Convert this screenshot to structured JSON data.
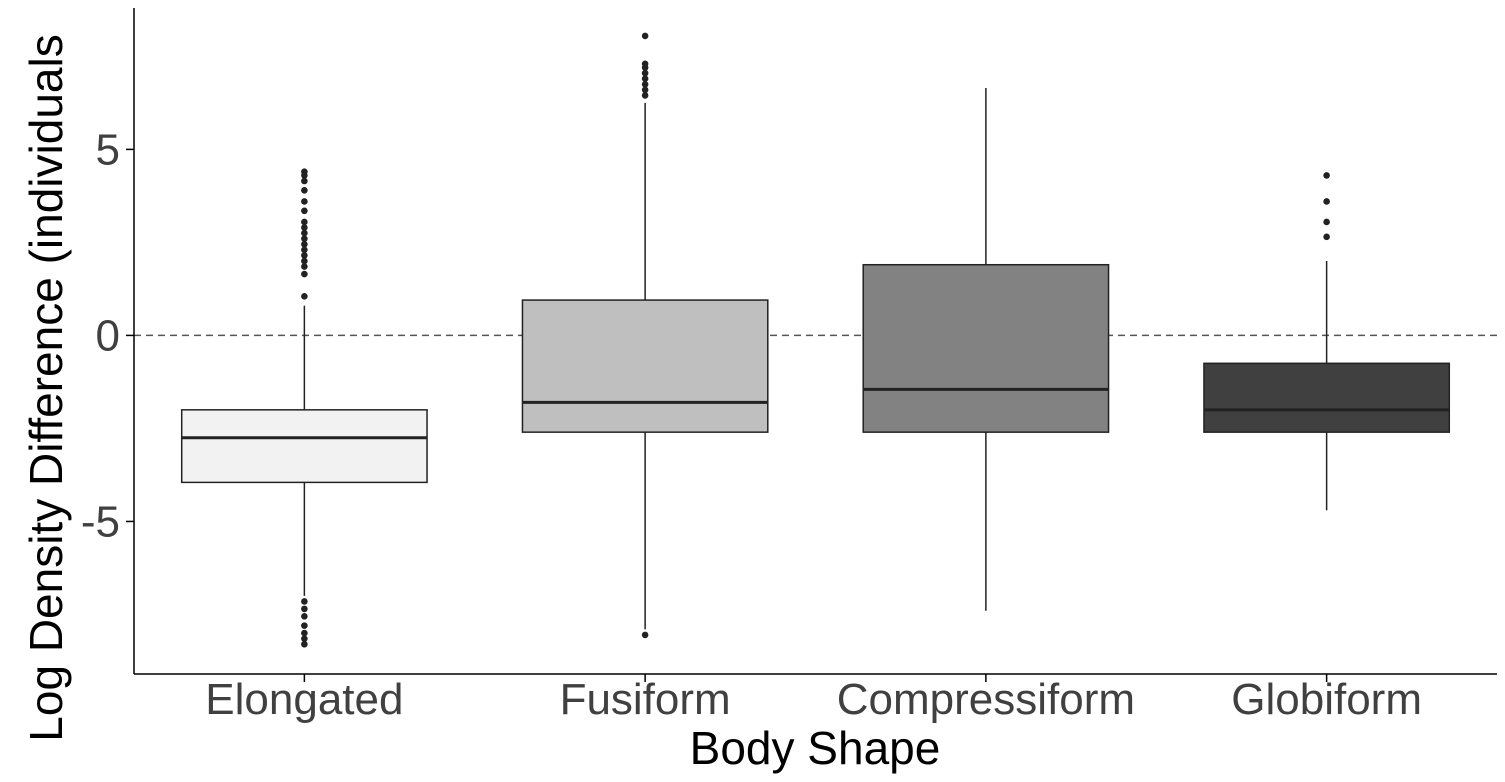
{
  "chart_data": {
    "type": "box",
    "xlabel": "Body Shape",
    "ylabel": "Log Density Difference (individuals",
    "categories": [
      "Elongated",
      "Fusiform",
      "Compressiform",
      "Globiform"
    ],
    "y_ticks": [
      -5,
      0,
      5
    ],
    "y_tick_labels": [
      "-5",
      "0",
      "5"
    ],
    "ylim": [
      -9.1,
      8.8
    ],
    "reference_line": {
      "y": 0,
      "style": "dashed"
    },
    "grid": false,
    "legend": "none",
    "boxes": [
      {
        "category": "Elongated",
        "fill": "#f2f2f2",
        "whisker_low": -7.0,
        "q1": -3.95,
        "median": -2.75,
        "q3": -2.0,
        "whisker_high": 0.8,
        "outliers_high": [
          1.05,
          1.65,
          1.85,
          2.0,
          2.15,
          2.3,
          2.45,
          2.6,
          2.75,
          2.9,
          3.05,
          3.35,
          3.6,
          3.9,
          4.15,
          4.3,
          4.4
        ],
        "outliers_low": [
          -7.15,
          -7.35,
          -7.55,
          -7.8,
          -8.0,
          -8.15,
          -8.3
        ]
      },
      {
        "category": "Fusiform",
        "fill": "#bfbfbf",
        "whisker_low": -7.9,
        "q1": -2.6,
        "median": -1.8,
        "q3": 0.95,
        "whisker_high": 6.25,
        "outliers_high": [
          6.45,
          6.6,
          6.75,
          6.9,
          7.05,
          7.2,
          7.3,
          8.05
        ],
        "outliers_low": [
          -8.05
        ]
      },
      {
        "category": "Compressiform",
        "fill": "#828282",
        "whisker_low": -7.4,
        "q1": -2.6,
        "median": -1.45,
        "q3": 1.9,
        "whisker_high": 6.65,
        "outliers_high": [],
        "outliers_low": []
      },
      {
        "category": "Globiform",
        "fill": "#404040",
        "whisker_low": -4.7,
        "q1": -2.6,
        "median": -2.0,
        "q3": -0.75,
        "whisker_high": 2.0,
        "outliers_high": [
          2.65,
          3.05,
          3.6,
          4.3
        ],
        "outliers_low": []
      }
    ]
  }
}
